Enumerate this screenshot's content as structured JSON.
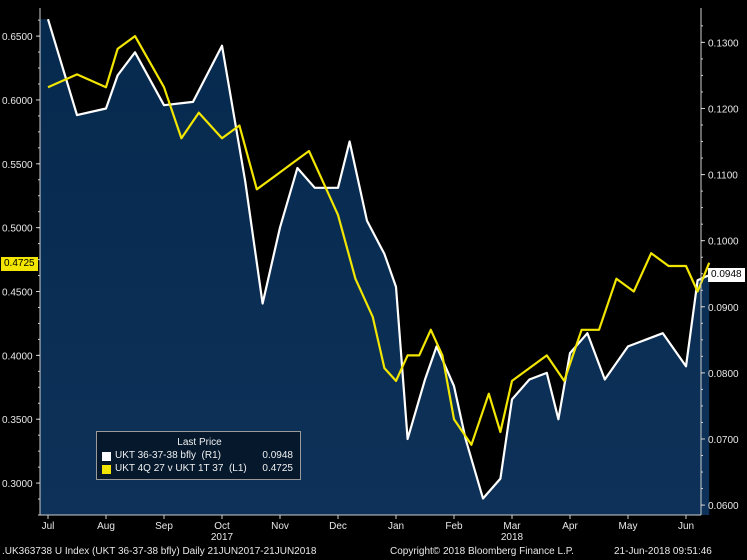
{
  "chart_data": {
    "type": "line",
    "x_labels": [
      "Jul",
      "Aug",
      "Sep",
      "Oct",
      "Nov",
      "Dec",
      "Jan",
      "Feb",
      "Mar",
      "Apr",
      "May",
      "Jun"
    ],
    "year_labels": [
      "2017",
      "2018"
    ],
    "left_axis": {
      "ticks": [
        "0.3000",
        "0.3500",
        "0.4000",
        "0.4500",
        "0.5000",
        "0.5500",
        "0.6000",
        "0.6500"
      ],
      "range": [
        0.275,
        0.672
      ]
    },
    "right_axis": {
      "ticks": [
        "0.0600",
        "0.0700",
        "0.0800",
        "0.0900",
        "0.1000",
        "0.1100",
        "0.1200",
        "0.1300"
      ],
      "range": [
        0.0585,
        0.1352
      ]
    },
    "series": [
      {
        "name": "UKT 36-37-38 bfly (R1)",
        "axis": "right",
        "color": "#ffffff",
        "last_value": "0.0948",
        "x": [
          0,
          0.5,
          1.0,
          1.2,
          1.5,
          2.0,
          2.5,
          3.0,
          3.4,
          3.7,
          4.0,
          4.3,
          4.6,
          5.0,
          5.2,
          5.5,
          5.8,
          6.0,
          6.2,
          6.5,
          6.7,
          7.0,
          7.2,
          7.5,
          7.8,
          8.0,
          8.3,
          8.6,
          8.8,
          9.0,
          9.3,
          9.6,
          10.0,
          10.3,
          10.6,
          11.0,
          11.2,
          11.4
        ],
        "y": [
          0.1335,
          0.119,
          0.12,
          0.125,
          0.1285,
          0.1205,
          0.121,
          0.1295,
          0.109,
          0.0905,
          0.102,
          0.111,
          0.108,
          0.108,
          0.115,
          0.103,
          0.098,
          0.093,
          0.07,
          0.079,
          0.084,
          0.078,
          0.07,
          0.061,
          0.064,
          0.076,
          0.079,
          0.08,
          0.073,
          0.083,
          0.086,
          0.079,
          0.084,
          0.085,
          0.086,
          0.081,
          0.094,
          0.0948
        ]
      },
      {
        "name": "UKT 4Q 27 v UKT 1T 37 (L1)",
        "axis": "left",
        "color": "#f2e600",
        "last_value": "0.4725",
        "x": [
          0,
          0.5,
          1.0,
          1.2,
          1.5,
          2.0,
          2.3,
          2.6,
          3.0,
          3.3,
          3.6,
          3.9,
          4.2,
          4.5,
          4.8,
          5.0,
          5.3,
          5.6,
          5.8,
          6.0,
          6.2,
          6.4,
          6.6,
          6.8,
          7.0,
          7.3,
          7.6,
          7.8,
          8.0,
          8.3,
          8.6,
          8.9,
          9.2,
          9.5,
          9.8,
          10.1,
          10.4,
          10.7,
          11.0,
          11.2,
          11.4
        ],
        "y": [
          0.61,
          0.62,
          0.61,
          0.64,
          0.65,
          0.61,
          0.57,
          0.59,
          0.57,
          0.58,
          0.53,
          0.54,
          0.55,
          0.56,
          0.53,
          0.51,
          0.46,
          0.43,
          0.39,
          0.38,
          0.4,
          0.4,
          0.42,
          0.4,
          0.35,
          0.33,
          0.37,
          0.34,
          0.38,
          0.39,
          0.4,
          0.38,
          0.42,
          0.42,
          0.46,
          0.45,
          0.48,
          0.47,
          0.47,
          0.45,
          0.4725
        ]
      }
    ]
  },
  "legend": {
    "title": "Last Price",
    "items": [
      {
        "label": "UKT 36-37-38 bfly  (R1)",
        "value": "0.0948",
        "color": "#ffffff"
      },
      {
        "label": "UKT 4Q 27 v UKT 1T 37  (L1)",
        "value": "0.4725",
        "color": "#f2e600"
      }
    ]
  },
  "last_price_tags": {
    "left": {
      "text": "0.4725",
      "bg": "#f2e600",
      "fg": "#000000"
    },
    "right": {
      "text": "0.0948",
      "bg": "#ffffff",
      "fg": "#000000"
    }
  },
  "footer": {
    "left": ".UK363738 U Index (UKT 36-37-38 bfly)  Daily 21JUN2017-21JUN2018",
    "center": "Copyright© 2018 Bloomberg Finance L.P.",
    "right": "21-Jun-2018 09:51:46"
  },
  "colors": {
    "background": "#000000",
    "plot_fill_top": "#062a4e",
    "plot_fill_bottom": "#0c2f55",
    "axis": "#d0d0d0"
  }
}
